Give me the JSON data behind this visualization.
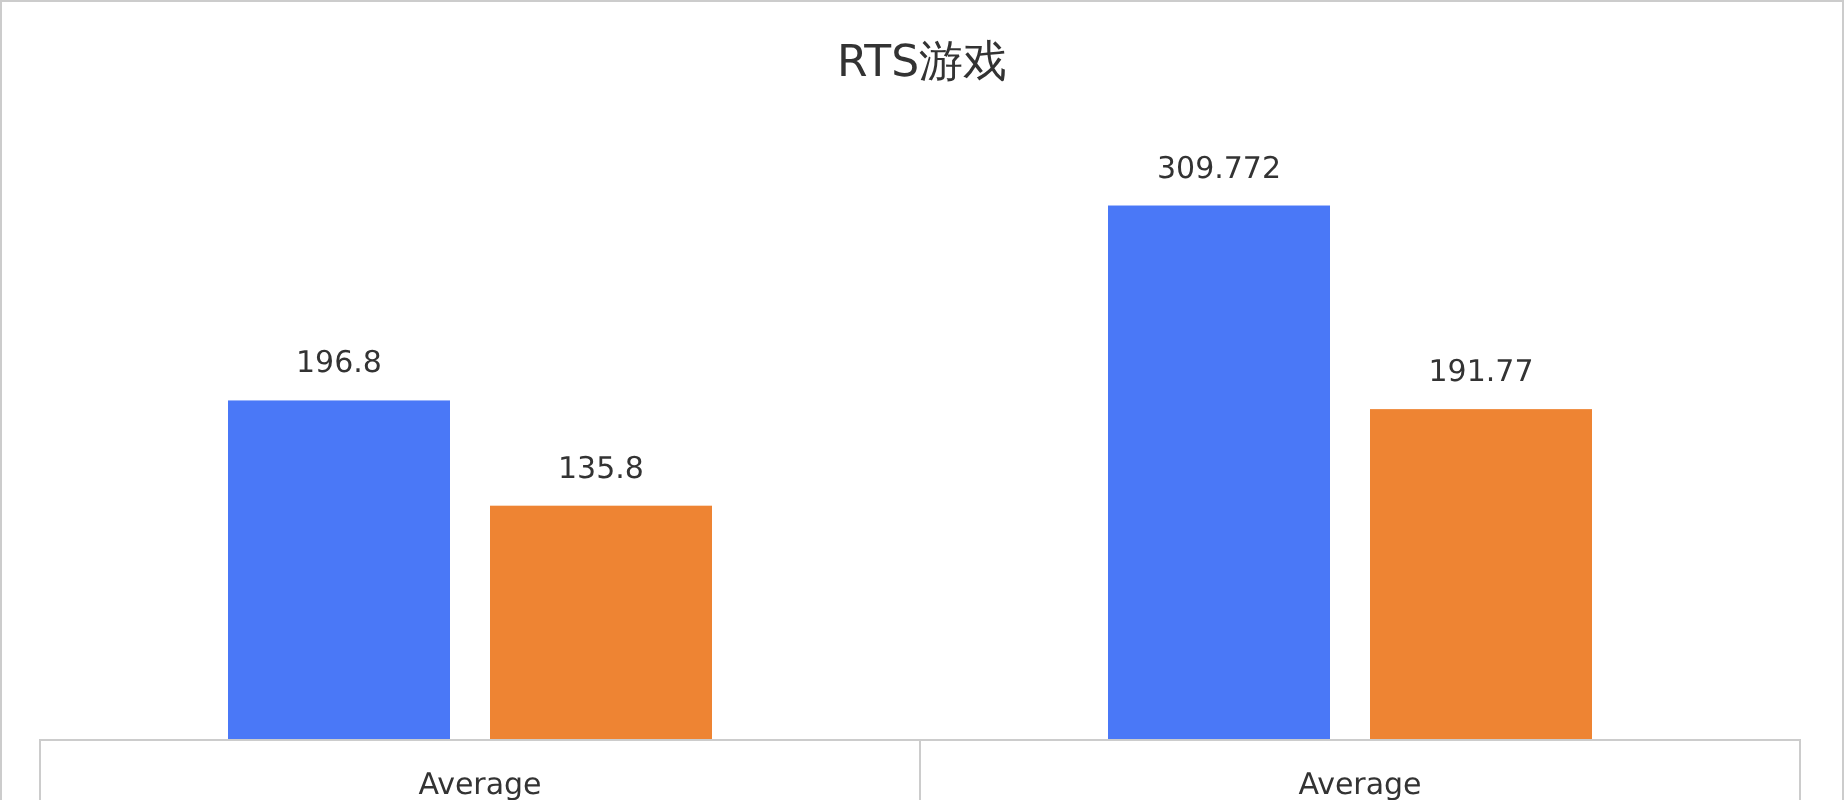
{
  "chart_data": {
    "type": "bar",
    "title": "RTS游戏",
    "categories": [
      "Average",
      "Average"
    ],
    "series": [
      {
        "color": "#4a78f7",
        "values": [
          196.8,
          309.772
        ]
      },
      {
        "color": "#ee8433",
        "values": [
          135.8,
          191.77
        ]
      }
    ],
    "data_labels": true,
    "relative": false
  }
}
